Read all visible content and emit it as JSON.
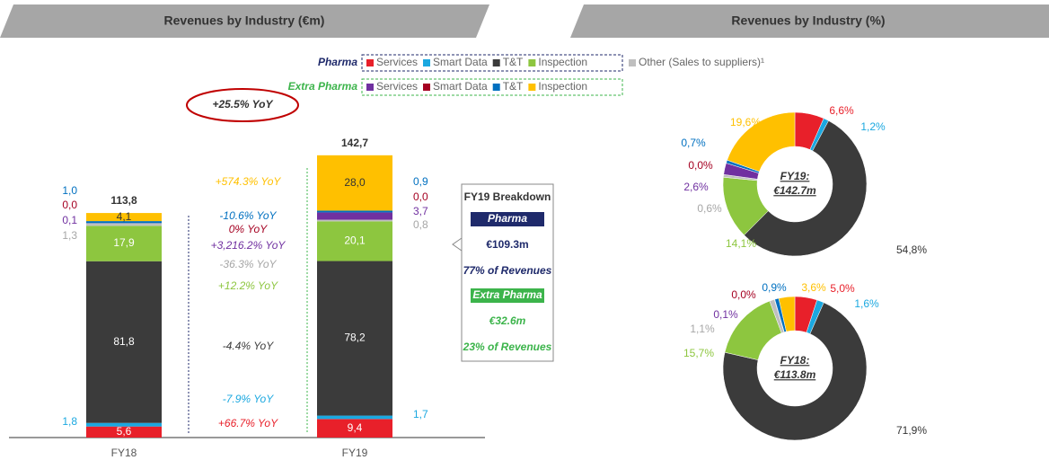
{
  "chart_data": [
    {
      "type": "bar",
      "title": "Revenues by Industry (€m)",
      "annotation": "+25.5% YoY",
      "categories": [
        "FY18",
        "FY19"
      ],
      "ylim": [
        0,
        145
      ],
      "series": [
        {
          "name": "Services",
          "group": "Pharma",
          "color": "#e8202a",
          "values": [
            5.6,
            9.4
          ],
          "value_labels": [
            "5,6",
            "9,4"
          ],
          "yoy": "+66.7% YoY"
        },
        {
          "name": "Smart Data",
          "group": "Pharma",
          "color": "#1ba8e0",
          "values": [
            1.8,
            1.7
          ],
          "value_labels": [
            "1,8",
            "1,7"
          ],
          "yoy": "-7.9% YoY"
        },
        {
          "name": "T&T",
          "group": "Pharma",
          "color": "#3b3b3b",
          "values": [
            81.8,
            78.2
          ],
          "value_labels": [
            "81,8",
            "78,2"
          ],
          "yoy": "-4.4% YoY"
        },
        {
          "name": "Inspection",
          "group": "Pharma",
          "color": "#8dc63f",
          "values": [
            17.9,
            20.1
          ],
          "value_labels": [
            "17,9",
            "20,1"
          ],
          "yoy": "+12.2% YoY"
        },
        {
          "name": "Other (Sales to suppliers)¹",
          "color": "#bfbfbf",
          "values": [
            1.3,
            0.8
          ],
          "value_labels": [
            "1,3",
            "0,8"
          ],
          "yoy": "-36.3% YoY"
        },
        {
          "name": "Services",
          "group": "Extra Pharma",
          "color": "#7030a0",
          "values": [
            0.1,
            3.7
          ],
          "value_labels": [
            "0,1",
            "3,7"
          ],
          "yoy": "+3,216.2% YoY"
        },
        {
          "name": "Smart Data",
          "group": "Extra Pharma",
          "color": "#a50021",
          "values": [
            0,
            0
          ],
          "value_labels": [
            "0,0",
            "0,0"
          ],
          "yoy": "0% YoY"
        },
        {
          "name": "T&T",
          "group": "Extra Pharma",
          "color": "#0070c0",
          "values": [
            1.0,
            0.9
          ],
          "value_labels": [
            "1,0",
            "0,9"
          ],
          "yoy": "-10.6% YoY"
        },
        {
          "name": "Inspection",
          "group": "Extra Pharma",
          "color": "#ffc000",
          "values": [
            4.1,
            28.0
          ],
          "value_labels": [
            "4,1",
            "28,0"
          ],
          "yoy": "+574.3% YoY"
        }
      ],
      "totals": [
        113.8,
        142.7
      ],
      "total_labels": [
        "113,8",
        "142,7"
      ],
      "breakdown": {
        "title": "FY19 Breakdown",
        "pharma": "Pharma",
        "pharma_value": "€109.3m",
        "pharma_share": "77% of Revenues",
        "extra": "Extra Pharma",
        "extra_value": "€32.6m",
        "extra_share": "23% of Revenues"
      }
    },
    {
      "type": "pie",
      "title": "Revenues by Industry (%)",
      "center_label": [
        "FY19:",
        "€142.7m"
      ],
      "values": [
        6.6,
        1.2,
        54.8,
        14.1,
        0.6,
        2.6,
        0,
        0.7,
        19.6
      ],
      "value_labels": [
        "6,6%",
        "1,2%",
        "54,8%",
        "14,1%",
        "0,6%",
        "2,6%",
        "0,0%",
        "0,7%",
        "19,6%"
      ],
      "colors": [
        "#e8202a",
        "#1ba8e0",
        "#3b3b3b",
        "#8dc63f",
        "#bfbfbf",
        "#7030a0",
        "#a50021",
        "#0070c0",
        "#ffc000"
      ]
    },
    {
      "type": "pie",
      "center_label": [
        "FY18:",
        "€113.8m"
      ],
      "values": [
        5.0,
        1.6,
        71.9,
        15.7,
        1.1,
        0.1,
        0,
        0.9,
        3.6
      ],
      "value_labels": [
        "5,0%",
        "1,6%",
        "71,9%",
        "15,7%",
        "1,1%",
        "0,1%",
        "0,0%",
        "0,9%",
        "3,6%"
      ],
      "colors": [
        "#e8202a",
        "#1ba8e0",
        "#3b3b3b",
        "#8dc63f",
        "#bfbfbf",
        "#7030a0",
        "#a50021",
        "#0070c0",
        "#ffc000"
      ]
    }
  ]
}
